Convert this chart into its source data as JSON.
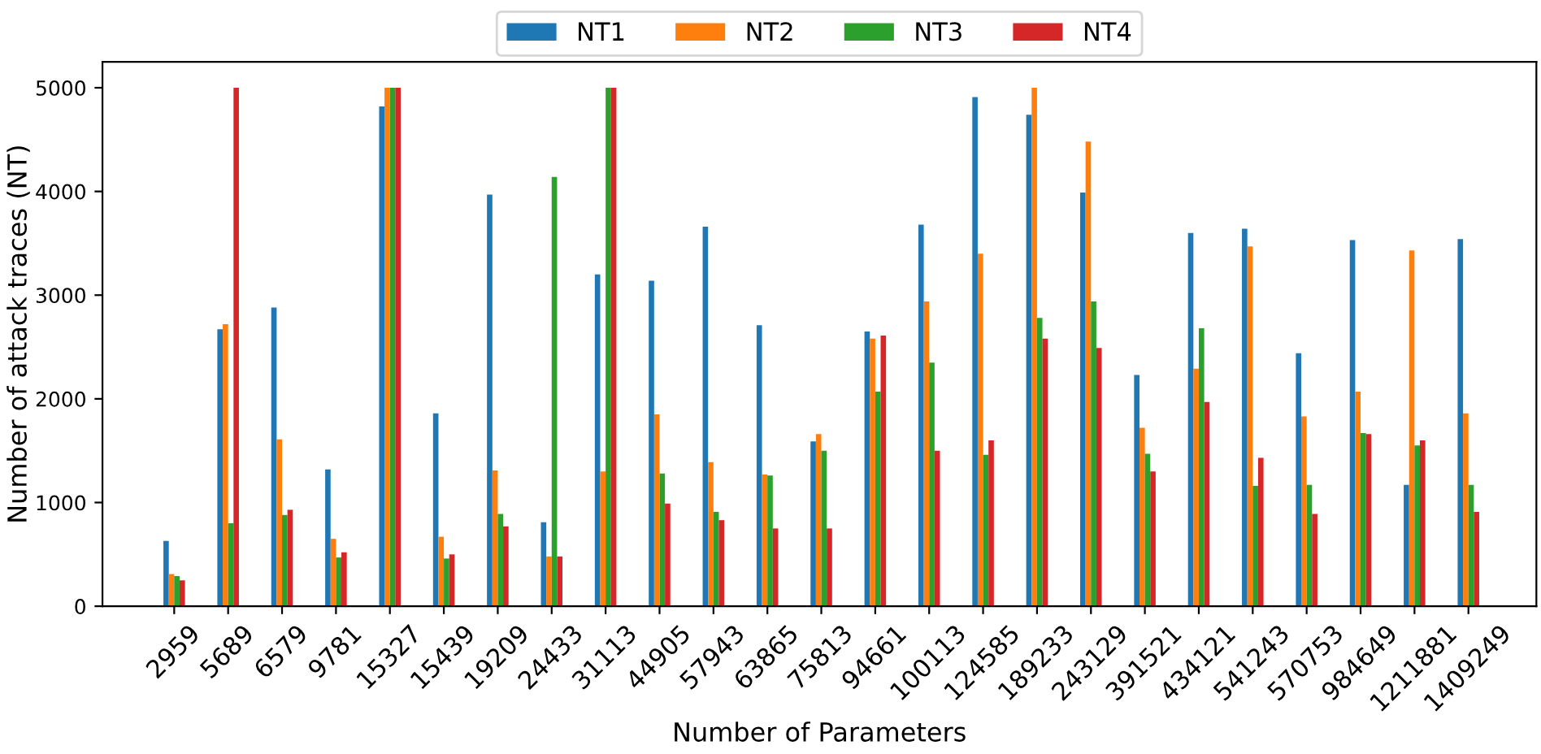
{
  "chart_data": {
    "type": "bar",
    "categories": [
      "2959",
      "5689",
      "6579",
      "9781",
      "15327",
      "15439",
      "19209",
      "24433",
      "31113",
      "44905",
      "57943",
      "63865",
      "75813",
      "94661",
      "100113",
      "124585",
      "189233",
      "243129",
      "391521",
      "434121",
      "541243",
      "570753",
      "984649",
      "1211881",
      "1409249"
    ],
    "series": [
      {
        "name": "NT1",
        "color": "#1f77b4",
        "values": [
          630,
          2670,
          2880,
          1320,
          4820,
          1860,
          3970,
          810,
          3200,
          3140,
          3660,
          2710,
          1590,
          2650,
          3680,
          4910,
          4740,
          3990,
          2230,
          3600,
          3640,
          2440,
          3530,
          1170,
          3540
        ]
      },
      {
        "name": "NT2",
        "color": "#ff7f0e",
        "values": [
          310,
          2720,
          1610,
          650,
          5000,
          670,
          1310,
          480,
          1300,
          1850,
          1390,
          1270,
          1660,
          2580,
          2940,
          3400,
          5000,
          4480,
          1720,
          2290,
          3470,
          1830,
          2070,
          3430,
          1860
        ]
      },
      {
        "name": "NT3",
        "color": "#2ca02c",
        "values": [
          290,
          800,
          880,
          470,
          5000,
          460,
          890,
          4140,
          5000,
          1280,
          910,
          1260,
          1500,
          2070,
          2350,
          1460,
          2780,
          2940,
          1470,
          2680,
          1160,
          1170,
          1670,
          1550,
          1170
        ]
      },
      {
        "name": "NT4",
        "color": "#d62728",
        "values": [
          250,
          5000,
          930,
          520,
          5000,
          500,
          770,
          480,
          5000,
          990,
          830,
          750,
          750,
          2610,
          1500,
          1600,
          2580,
          2490,
          1300,
          1970,
          1430,
          890,
          1660,
          1600,
          910
        ]
      }
    ],
    "xlabel": "Number of Parameters",
    "ylabel": "Number of attack traces (NT)",
    "ylim": [
      0,
      5250
    ],
    "yticks": [
      0,
      1000,
      2000,
      3000,
      4000,
      5000
    ],
    "legend": "top"
  }
}
